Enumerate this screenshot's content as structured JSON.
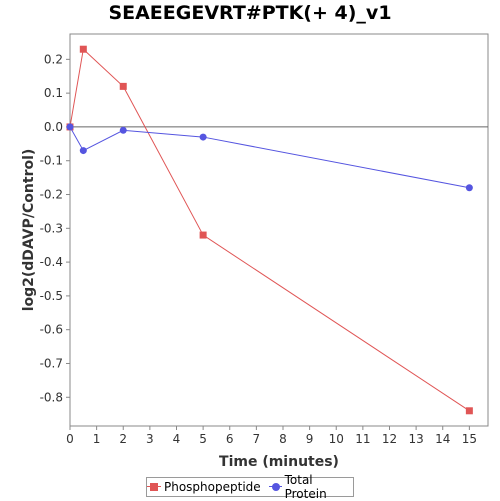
{
  "chart_data": {
    "type": "line",
    "title": "SEAEEGEVRT#PTK(+ 4)_v1",
    "xlabel": "Time (minutes)",
    "ylabel": "log2(dDAVP/Control)",
    "xlim": [
      0,
      15.7
    ],
    "ylim": [
      -0.885,
      0.275
    ],
    "xticks": [
      0,
      1,
      2,
      3,
      4,
      5,
      6,
      7,
      8,
      9,
      10,
      11,
      12,
      13,
      14,
      15
    ],
    "yticks": [
      0.2,
      0.1,
      0.0,
      -0.1,
      -0.2,
      -0.3,
      -0.4,
      -0.5,
      -0.6,
      -0.7,
      -0.8
    ],
    "ytick_labels": [
      "0.2",
      "0.1",
      "0.0",
      "-0.1",
      "-0.2",
      "-0.3",
      "-0.4",
      "-0.5",
      "-0.6",
      "-0.7",
      "-0.8"
    ],
    "zero_line": true,
    "grid": false,
    "legend_position": "bottom",
    "series": [
      {
        "name": "Phosphopeptide",
        "color": "#e05555",
        "marker": "square",
        "x": [
          0,
          0.5,
          2,
          5,
          15
        ],
        "y": [
          0.0,
          0.23,
          0.12,
          -0.32,
          -0.84
        ]
      },
      {
        "name": "Total Protein",
        "color": "#5555e0",
        "marker": "circle",
        "x": [
          0,
          0.5,
          2,
          5,
          15
        ],
        "y": [
          0.0,
          -0.07,
          -0.01,
          -0.03,
          -0.18
        ]
      }
    ]
  }
}
